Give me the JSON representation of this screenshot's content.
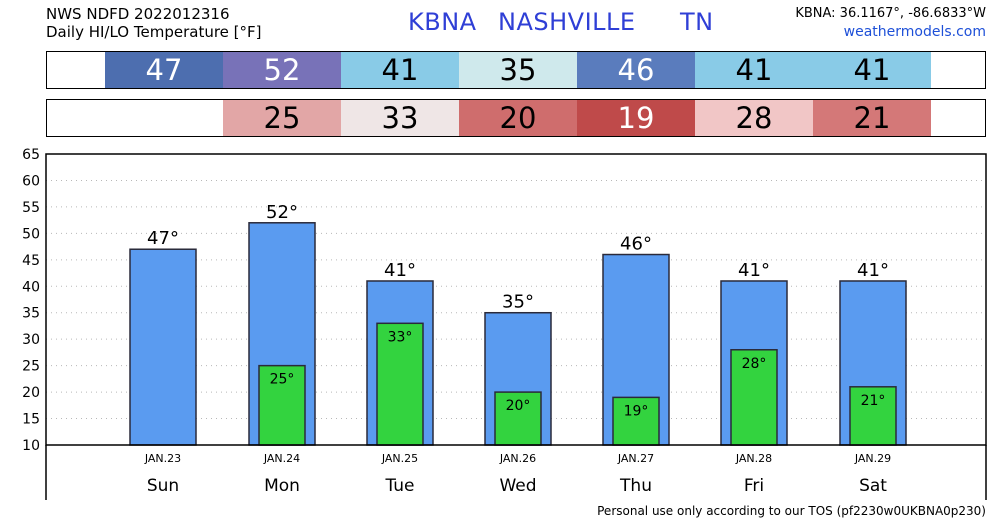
{
  "header": {
    "line1": "NWS NDFD 2022012316",
    "line2": "Daily HI/LO Temperature [°F]",
    "station_code": "KBNA",
    "station_name": "NASHVILLE",
    "state": "TN",
    "coords": "KBNA: 36.1167°, -86.6833°W",
    "site": "weathermodels.com"
  },
  "hi_band": {
    "values": [
      "47",
      "52",
      "41",
      "35",
      "46",
      "41",
      "41"
    ],
    "colors": [
      "#4d6eaf",
      "#7872b8",
      "#89cbe7",
      "#cfe9ec",
      "#5a7cbd",
      "#89cbe7",
      "#89cbe7"
    ],
    "text_colors": [
      "#ffffff",
      "#ffffff",
      "#000000",
      "#000000",
      "#ffffff",
      "#000000",
      "#000000"
    ]
  },
  "lo_band": {
    "values": [
      "25",
      "33",
      "20",
      "19",
      "28",
      "21"
    ],
    "colors": [
      "#e2a6a6",
      "#efe6e6",
      "#cf6d6d",
      "#bf4a4a",
      "#f1c6c6",
      "#d47878"
    ],
    "text_colors": [
      "#000000",
      "#000000",
      "#000000",
      "#ffffff",
      "#000000",
      "#000000"
    ]
  },
  "chart_data": {
    "type": "bar",
    "categories": [
      "Sun",
      "Mon",
      "Tue",
      "Wed",
      "Thu",
      "Fri",
      "Sat"
    ],
    "dates": [
      "JAN.23",
      "JAN.24",
      "JAN.25",
      "JAN.26",
      "JAN.27",
      "JAN.28",
      "JAN.29"
    ],
    "series": [
      {
        "values": [
          47,
          52,
          41,
          35,
          46,
          41,
          41
        ],
        "color": "#5a9bf0",
        "labels": [
          "47°",
          "52°",
          "41°",
          "35°",
          "46°",
          "41°",
          "41°"
        ]
      },
      {
        "values": [
          null,
          25,
          33,
          20,
          19,
          28,
          21
        ],
        "color": "#33d33f",
        "labels": [
          "",
          "25°",
          "33°",
          "20°",
          "19°",
          "28°",
          "21°"
        ]
      }
    ],
    "ylim": [
      10,
      65
    ],
    "yticks": [
      "10",
      "15",
      "20",
      "25",
      "30",
      "35",
      "40",
      "45",
      "50",
      "55",
      "60",
      "65"
    ],
    "grid": true
  },
  "footer": "Personal use only according to our TOS (pf2230w0UKBNA0p230)"
}
